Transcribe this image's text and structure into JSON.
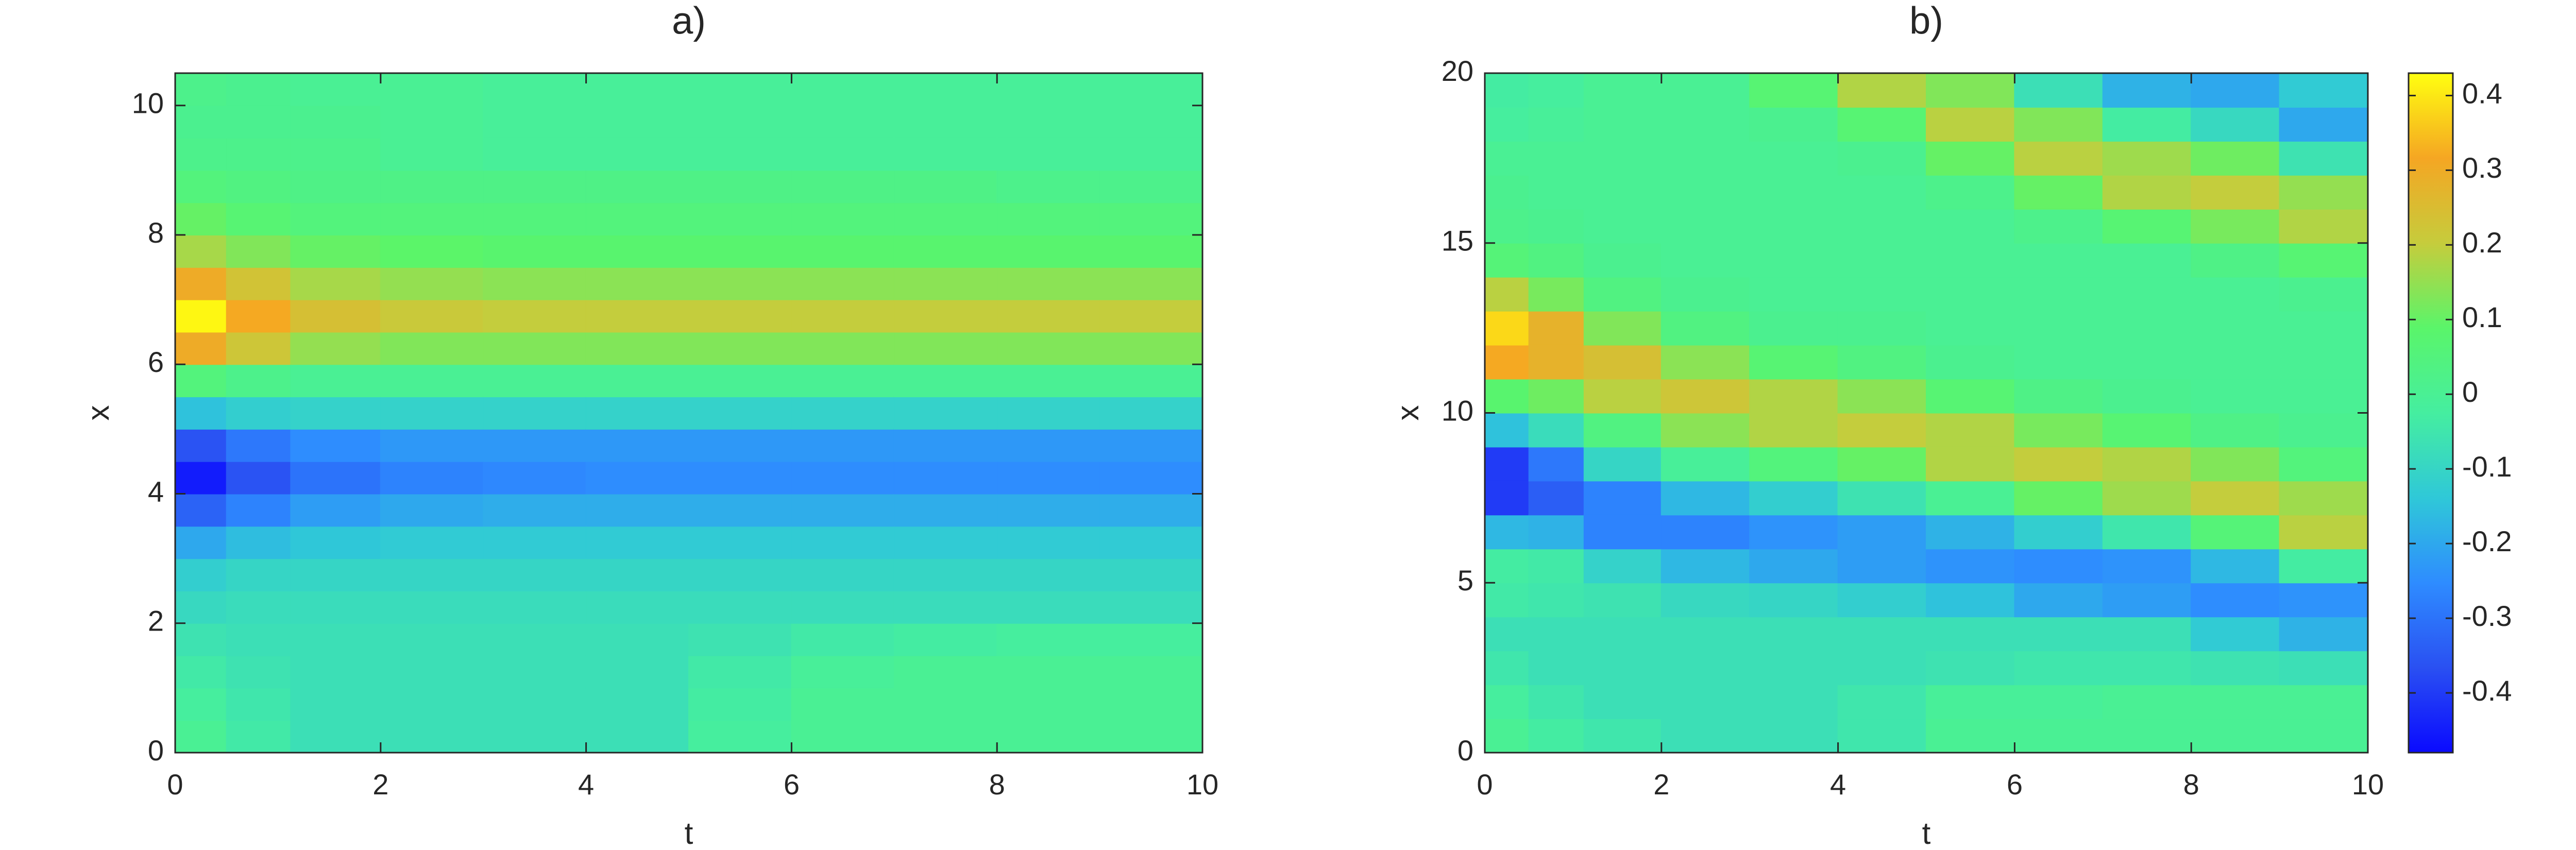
{
  "chart_data": [
    {
      "type": "contour",
      "title": "a)",
      "xlabel": "t",
      "ylabel": "x",
      "xlim": [
        0,
        10
      ],
      "ylim": [
        0,
        10.5
      ],
      "xticks": [
        0,
        2,
        4,
        6,
        8,
        10
      ],
      "yticks": [
        0,
        2,
        4,
        6,
        8,
        10
      ],
      "clim": [
        -0.48,
        0.43
      ],
      "colormap": [
        "#0a0aff",
        "#2a50f2",
        "#2e8cff",
        "#2fc8d8",
        "#45eea0",
        "#5af56a",
        "#c6cc3c",
        "#f5a623",
        "#ffff10"
      ],
      "t": [
        0.25,
        0.75,
        1.5,
        2.5,
        3.5,
        4.5,
        5.5,
        6.5,
        7.5,
        8.5,
        9.5
      ],
      "x": [
        0.25,
        0.75,
        1.25,
        1.75,
        2.25,
        2.75,
        3.25,
        3.75,
        4.25,
        4.75,
        5.25,
        5.75,
        6.25,
        6.75,
        7.25,
        7.75,
        8.25,
        8.75,
        9.25,
        9.75,
        10.25
      ],
      "z": [
        [
          0.0,
          -0.02,
          -0.04,
          -0.06,
          -0.09,
          -0.12,
          -0.2,
          -0.33,
          -0.45,
          -0.36,
          -0.15,
          0.05,
          0.3,
          0.42,
          0.3,
          0.17,
          0.1,
          0.05,
          0.02,
          0.01,
          0.02
        ],
        [
          -0.04,
          -0.05,
          -0.06,
          -0.07,
          -0.08,
          -0.1,
          -0.16,
          -0.27,
          -0.36,
          -0.29,
          -0.12,
          0.02,
          0.22,
          0.32,
          0.23,
          0.13,
          0.07,
          0.04,
          0.02,
          0.01,
          0.01
        ],
        [
          -0.07,
          -0.07,
          -0.07,
          -0.07,
          -0.08,
          -0.1,
          -0.14,
          -0.22,
          -0.3,
          -0.25,
          -0.11,
          0,
          0.15,
          0.24,
          0.17,
          0.1,
          0.05,
          0.03,
          0.02,
          0.01,
          0
        ],
        [
          -0.07,
          -0.07,
          -0.07,
          -0.07,
          -0.08,
          -0.1,
          -0.13,
          -0.2,
          -0.27,
          -0.23,
          -0.11,
          0,
          0.13,
          0.21,
          0.15,
          0.09,
          0.05,
          0.03,
          0,
          0,
          0
        ],
        [
          -0.07,
          -0.07,
          -0.07,
          -0.07,
          -0.08,
          -0.1,
          -0.13,
          -0.19,
          -0.26,
          -0.23,
          -0.11,
          0,
          0.13,
          0.2,
          0.14,
          0.08,
          0.05,
          0.03,
          -0.01,
          -0.01,
          -0.01
        ],
        [
          -0.07,
          -0.07,
          -0.07,
          -0.07,
          -0.08,
          -0.1,
          -0.13,
          -0.19,
          -0.25,
          -0.23,
          -0.11,
          0,
          0.13,
          0.2,
          0.14,
          0.08,
          0.05,
          0.03,
          -0.01,
          -0.01,
          -0.01
        ],
        [
          -0.02,
          -0.03,
          -0.04,
          -0.06,
          -0.08,
          -0.1,
          -0.13,
          -0.19,
          -0.25,
          -0.23,
          -0.11,
          0,
          0.13,
          0.2,
          0.14,
          0.08,
          0.05,
          0.03,
          -0.01,
          -0.01,
          -0.01
        ],
        [
          0,
          0,
          -0.01,
          -0.04,
          -0.08,
          -0.1,
          -0.13,
          -0.19,
          -0.25,
          -0.23,
          -0.11,
          0,
          0.13,
          0.2,
          0.14,
          0.08,
          0.05,
          0.03,
          -0.01,
          -0.01,
          -0.01
        ],
        [
          0,
          0,
          0,
          -0.03,
          -0.08,
          -0.1,
          -0.13,
          -0.19,
          -0.25,
          -0.23,
          -0.11,
          0,
          0.13,
          0.2,
          0.14,
          0.08,
          0.05,
          0.03,
          -0.01,
          -0.01,
          -0.01
        ],
        [
          0,
          0,
          0,
          -0.02,
          -0.08,
          -0.1,
          -0.13,
          -0.19,
          -0.25,
          -0.23,
          -0.11,
          0,
          0.13,
          0.2,
          0.14,
          0.08,
          0.05,
          0.02,
          -0.01,
          -0.01,
          -0.01
        ],
        [
          0,
          0,
          0,
          -0.02,
          -0.08,
          -0.1,
          -0.13,
          -0.19,
          -0.25,
          -0.23,
          -0.11,
          0,
          0.13,
          0.2,
          0.14,
          0.08,
          0.05,
          0.02,
          -0.01,
          -0.01,
          -0.01
        ]
      ]
    },
    {
      "type": "contour",
      "title": "b)",
      "xlabel": "t",
      "ylabel": "x",
      "xlim": [
        0,
        10
      ],
      "ylim": [
        0,
        20
      ],
      "xticks": [
        0,
        2,
        4,
        6,
        8,
        10
      ],
      "yticks": [
        0,
        5,
        10,
        15,
        20
      ],
      "clim": [
        -0.48,
        0.43
      ],
      "colormap": [
        "#0a0aff",
        "#2a50f2",
        "#2e8cff",
        "#2fc8d8",
        "#45eea0",
        "#5af56a",
        "#c6cc3c",
        "#f5a623",
        "#ffff10"
      ],
      "colorbar_ticks": [
        -0.4,
        -0.3,
        -0.2,
        -0.1,
        0,
        0.1,
        0.2,
        0.3,
        0.4
      ],
      "t": [
        0.25,
        0.75,
        1.5,
        2.5,
        3.5,
        4.5,
        5.5,
        6.5,
        7.5,
        8.5,
        9.5
      ],
      "x": [
        0.5,
        1.5,
        2.5,
        3.5,
        4.5,
        5.5,
        6.5,
        7.5,
        8.5,
        9.5,
        10.5,
        11.5,
        12.5,
        13.5,
        14.5,
        15.5,
        16.5,
        17.5,
        18.5,
        19.5
      ],
      "z": [
        [
          0.0,
          -0.02,
          -0.05,
          -0.07,
          -0.04,
          -0.03,
          -0.17,
          -0.4,
          -0.4,
          -0.15,
          0.08,
          0.32,
          0.38,
          0.19,
          0.06,
          0.02,
          0.01,
          0.0,
          -0.02,
          -0.03
        ],
        [
          -0.03,
          -0.05,
          -0.07,
          -0.07,
          -0.05,
          -0.04,
          -0.18,
          -0.34,
          -0.29,
          -0.08,
          0.11,
          0.28,
          0.28,
          0.12,
          0.04,
          0.01,
          0,
          0,
          -0.01,
          -0.02
        ],
        [
          -0.05,
          -0.07,
          -0.07,
          -0.07,
          -0.06,
          -0.11,
          -0.27,
          -0.27,
          -0.1,
          0.04,
          0.19,
          0.24,
          0.13,
          0.04,
          0.01,
          0,
          0,
          0,
          0,
          0
        ],
        [
          -0.07,
          -0.07,
          -0.07,
          -0.07,
          -0.09,
          -0.17,
          -0.27,
          -0.17,
          -0.01,
          0.14,
          0.22,
          0.14,
          0.04,
          0.01,
          0,
          0,
          0,
          0,
          0,
          0
        ],
        [
          -0.07,
          -0.07,
          -0.07,
          -0.07,
          -0.1,
          -0.2,
          -0.24,
          -0.12,
          0.05,
          0.18,
          0.18,
          0.07,
          0.01,
          0,
          0,
          0,
          0,
          0,
          0.01,
          0.07
        ],
        [
          -0.05,
          -0.05,
          -0.07,
          -0.07,
          -0.12,
          -0.22,
          -0.22,
          -0.06,
          0.1,
          0.2,
          0.14,
          0.04,
          0.01,
          0,
          0,
          0,
          0,
          0.01,
          0.07,
          0.18
        ],
        [
          0,
          -0.01,
          -0.06,
          -0.07,
          -0.15,
          -0.24,
          -0.18,
          0,
          0.18,
          0.18,
          0.07,
          0.01,
          0,
          0,
          0,
          0,
          0.02,
          0.1,
          0.19,
          0.13
        ],
        [
          0,
          -0.01,
          -0.05,
          -0.07,
          -0.2,
          -0.25,
          -0.12,
          0.1,
          0.2,
          0.12,
          0.03,
          0,
          0,
          0,
          0,
          0.02,
          0.1,
          0.19,
          0.13,
          -0.07
        ],
        [
          0,
          0,
          -0.05,
          -0.07,
          -0.22,
          -0.24,
          -0.05,
          0.16,
          0.18,
          0.07,
          0.01,
          0,
          0,
          0,
          0,
          0.07,
          0.18,
          0.16,
          -0.03,
          -0.18
        ],
        [
          0,
          0,
          -0.06,
          -0.13,
          -0.25,
          -0.17,
          0.06,
          0.2,
          0.13,
          0.03,
          0,
          0,
          0,
          0,
          0.03,
          0.12,
          0.2,
          0.11,
          -0.09,
          -0.2
        ],
        [
          0,
          0,
          -0.07,
          -0.18,
          -0.24,
          -0.03,
          0.19,
          0.16,
          0.05,
          0.01,
          0,
          0,
          0,
          0.01,
          0.07,
          0.18,
          0.15,
          -0.06,
          -0.2,
          -0.13
        ]
      ]
    }
  ]
}
